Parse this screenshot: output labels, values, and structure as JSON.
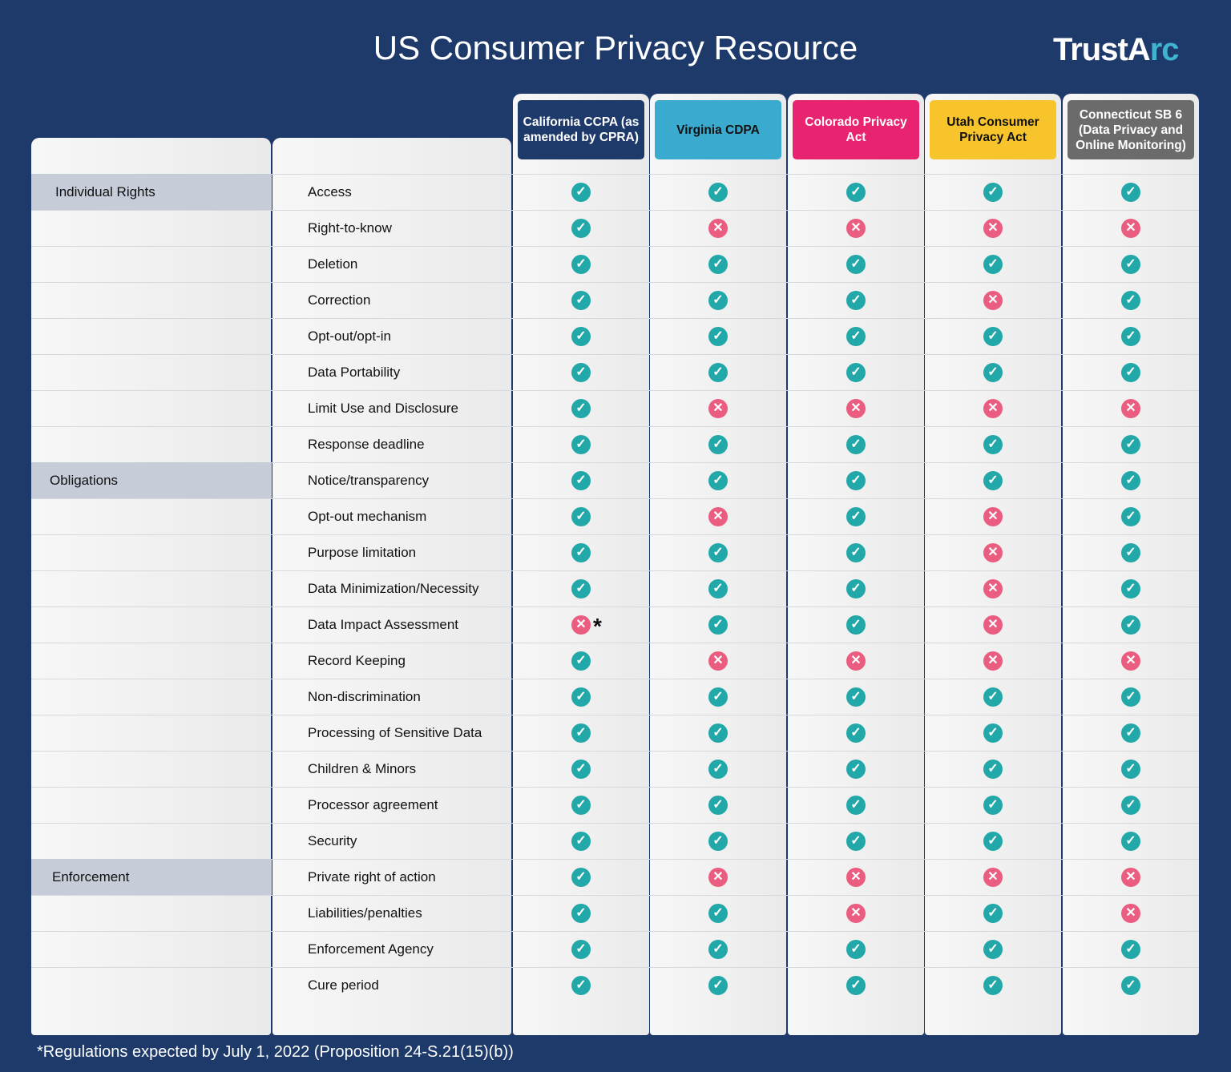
{
  "title": "US Consumer Privacy Resource",
  "logo": {
    "text": "TrustArc",
    "accent": "#3fb3cf"
  },
  "columns": [
    {
      "label": "California CCPA (as amended by CPRA)",
      "bg": "#1e3a6b",
      "fg": "#ffffff"
    },
    {
      "label": "Virginia CDPA",
      "bg": "#3aabcf",
      "fg": "#111111"
    },
    {
      "label": "Colorado Privacy Act",
      "bg": "#e8236f",
      "fg": "#ffffff"
    },
    {
      "label": "Utah Consumer Privacy Act",
      "bg": "#f8c42b",
      "fg": "#111111"
    },
    {
      "label": "Connecticut SB 6 (Data Privacy and Online Monitoring)",
      "bg": "#6b6b6b",
      "fg": "#ffffff"
    }
  ],
  "rows": [
    {
      "category": "Individual Rights",
      "feature": "Access",
      "values": [
        1,
        1,
        1,
        1,
        1
      ]
    },
    {
      "feature": "Right-to-know",
      "values": [
        1,
        0,
        0,
        0,
        0
      ]
    },
    {
      "feature": "Deletion",
      "values": [
        1,
        1,
        1,
        1,
        1
      ]
    },
    {
      "feature": "Correction",
      "values": [
        1,
        1,
        1,
        0,
        1
      ]
    },
    {
      "feature": "Opt-out/opt-in",
      "values": [
        1,
        1,
        1,
        1,
        1
      ]
    },
    {
      "feature": "Data Portability",
      "values": [
        1,
        1,
        1,
        1,
        1
      ]
    },
    {
      "feature": "Limit Use and Disclosure",
      "values": [
        1,
        0,
        0,
        0,
        0
      ]
    },
    {
      "feature": "Response deadline",
      "values": [
        1,
        1,
        1,
        1,
        1
      ]
    },
    {
      "category": "Obligations",
      "feature": "Notice/transparency",
      "values": [
        1,
        1,
        1,
        1,
        1
      ]
    },
    {
      "feature": "Opt-out mechanism",
      "values": [
        1,
        0,
        1,
        0,
        1
      ]
    },
    {
      "feature": "Purpose limitation",
      "values": [
        1,
        1,
        1,
        0,
        1
      ]
    },
    {
      "feature": "Data Minimization/Necessity",
      "values": [
        1,
        1,
        1,
        0,
        1
      ]
    },
    {
      "feature": "Data Impact Assessment",
      "values": [
        0,
        1,
        1,
        0,
        1
      ],
      "note": "*"
    },
    {
      "feature": "Record Keeping",
      "values": [
        1,
        0,
        0,
        0,
        0
      ]
    },
    {
      "feature": "Non-discrimination",
      "values": [
        1,
        1,
        1,
        1,
        1
      ]
    },
    {
      "feature": "Processing of Sensitive Data",
      "values": [
        1,
        1,
        1,
        1,
        1
      ]
    },
    {
      "feature": "Children & Minors",
      "values": [
        1,
        1,
        1,
        1,
        1
      ]
    },
    {
      "feature": "Processor agreement",
      "values": [
        1,
        1,
        1,
        1,
        1
      ]
    },
    {
      "feature": "Security",
      "values": [
        1,
        1,
        1,
        1,
        1
      ]
    },
    {
      "category": "Enforcement",
      "feature": "Private right of action",
      "values": [
        1,
        0,
        0,
        0,
        0
      ]
    },
    {
      "feature": "Liabilities/penalties",
      "values": [
        1,
        1,
        0,
        1,
        0
      ]
    },
    {
      "feature": "Enforcement Agency",
      "values": [
        1,
        1,
        1,
        1,
        1
      ]
    },
    {
      "feature": "Cure period",
      "values": [
        1,
        1,
        1,
        1,
        1
      ]
    }
  ],
  "icons": {
    "yes": "check-circle-icon",
    "no": "x-circle-icon"
  },
  "footnote": {
    "mark": "*",
    "text": "Regulations expected by July 1, 2022 (Proposition 24-S.21(15)(b))"
  }
}
